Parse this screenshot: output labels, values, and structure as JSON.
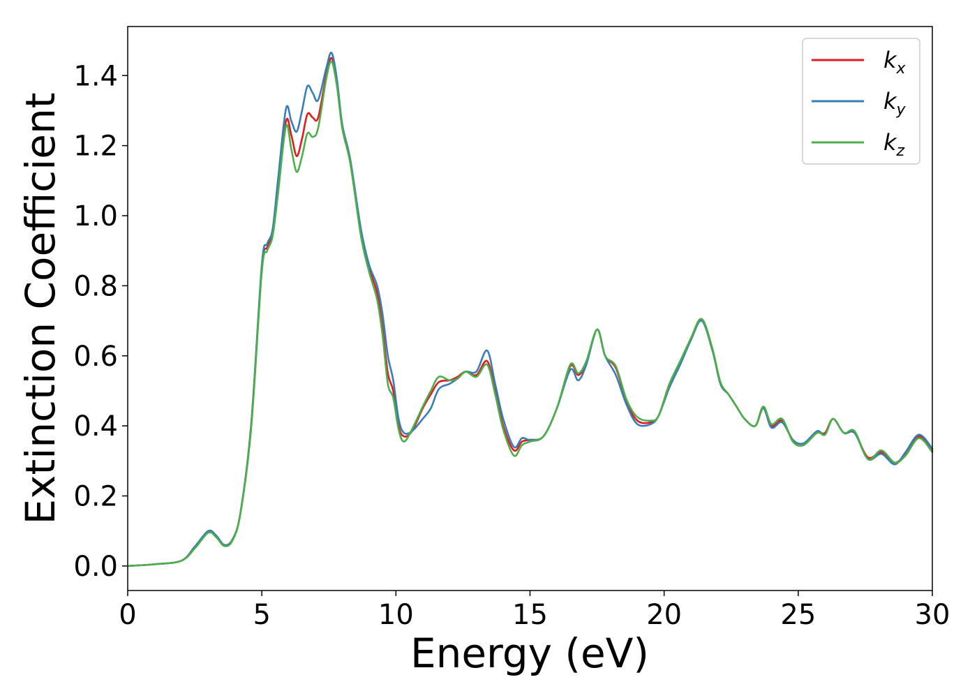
{
  "chart_data": {
    "type": "line",
    "xlabel": "Energy (eV)",
    "ylabel": "Extinction Coefficient",
    "xlim": [
      0,
      30
    ],
    "ylim": [
      -0.07,
      1.54
    ],
    "xticks": [
      0,
      5,
      10,
      15,
      20,
      25,
      30
    ],
    "yticks": [
      0.0,
      0.2,
      0.4,
      0.6,
      0.8,
      1.0,
      1.2,
      1.4
    ],
    "ytick_labels": [
      "0.0",
      "0.2",
      "0.4",
      "0.6",
      "0.8",
      "1.0",
      "1.2",
      "1.4"
    ],
    "grid": false,
    "legend_position": "top-right",
    "series": [
      {
        "name": "k_x",
        "label_base": "k",
        "label_sub": "x",
        "color": "#e41a1c",
        "points": [
          [
            0,
            0
          ],
          [
            1,
            0.005
          ],
          [
            2,
            0.015
          ],
          [
            2.5,
            0.055
          ],
          [
            3,
            0.098
          ],
          [
            3.3,
            0.085
          ],
          [
            3.6,
            0.06
          ],
          [
            3.9,
            0.075
          ],
          [
            4.2,
            0.15
          ],
          [
            4.6,
            0.4
          ],
          [
            5,
            0.85
          ],
          [
            5.2,
            0.91
          ],
          [
            5.4,
            0.95
          ],
          [
            5.6,
            1.08
          ],
          [
            5.9,
            1.27
          ],
          [
            6.1,
            1.23
          ],
          [
            6.3,
            1.17
          ],
          [
            6.5,
            1.22
          ],
          [
            6.7,
            1.29
          ],
          [
            6.9,
            1.28
          ],
          [
            7.1,
            1.28
          ],
          [
            7.4,
            1.4
          ],
          [
            7.6,
            1.45
          ],
          [
            7.8,
            1.38
          ],
          [
            8,
            1.25
          ],
          [
            8.3,
            1.15
          ],
          [
            8.7,
            0.95
          ],
          [
            9,
            0.85
          ],
          [
            9.3,
            0.78
          ],
          [
            9.5,
            0.68
          ],
          [
            9.7,
            0.55
          ],
          [
            9.9,
            0.5
          ],
          [
            10.1,
            0.4
          ],
          [
            10.3,
            0.37
          ],
          [
            10.6,
            0.385
          ],
          [
            11,
            0.45
          ],
          [
            11.3,
            0.49
          ],
          [
            11.6,
            0.525
          ],
          [
            12,
            0.53
          ],
          [
            12.3,
            0.54
          ],
          [
            12.6,
            0.555
          ],
          [
            13,
            0.545
          ],
          [
            13.4,
            0.585
          ],
          [
            13.7,
            0.5
          ],
          [
            14,
            0.4
          ],
          [
            14.4,
            0.33
          ],
          [
            14.7,
            0.355
          ],
          [
            15,
            0.36
          ],
          [
            15.5,
            0.37
          ],
          [
            16,
            0.45
          ],
          [
            16.5,
            0.57
          ],
          [
            16.8,
            0.545
          ],
          [
            17.1,
            0.58
          ],
          [
            17.5,
            0.675
          ],
          [
            17.8,
            0.6
          ],
          [
            18.2,
            0.565
          ],
          [
            18.6,
            0.47
          ],
          [
            19,
            0.415
          ],
          [
            19.5,
            0.41
          ],
          [
            19.8,
            0.43
          ],
          [
            20.2,
            0.52
          ],
          [
            20.6,
            0.58
          ],
          [
            21,
            0.65
          ],
          [
            21.4,
            0.705
          ],
          [
            21.8,
            0.62
          ],
          [
            22.1,
            0.52
          ],
          [
            22.4,
            0.49
          ],
          [
            22.7,
            0.455
          ],
          [
            23,
            0.42
          ],
          [
            23.4,
            0.4
          ],
          [
            23.7,
            0.455
          ],
          [
            24,
            0.4
          ],
          [
            24.4,
            0.415
          ],
          [
            24.8,
            0.36
          ],
          [
            25.2,
            0.35
          ],
          [
            25.7,
            0.38
          ],
          [
            26,
            0.38
          ],
          [
            26.3,
            0.42
          ],
          [
            26.7,
            0.38
          ],
          [
            27.1,
            0.38
          ],
          [
            27.6,
            0.31
          ],
          [
            28.1,
            0.325
          ],
          [
            28.6,
            0.295
          ],
          [
            29,
            0.32
          ],
          [
            29.5,
            0.37
          ],
          [
            30,
            0.33
          ]
        ]
      },
      {
        "name": "k_y",
        "label_base": "k",
        "label_sub": "y",
        "color": "#377eb8",
        "points": [
          [
            0,
            0
          ],
          [
            1,
            0.005
          ],
          [
            2,
            0.015
          ],
          [
            2.5,
            0.055
          ],
          [
            3,
            0.1
          ],
          [
            3.3,
            0.087
          ],
          [
            3.6,
            0.06
          ],
          [
            3.9,
            0.075
          ],
          [
            4.2,
            0.15
          ],
          [
            4.6,
            0.4
          ],
          [
            5,
            0.86
          ],
          [
            5.2,
            0.92
          ],
          [
            5.4,
            0.96
          ],
          [
            5.6,
            1.1
          ],
          [
            5.9,
            1.305
          ],
          [
            6.1,
            1.27
          ],
          [
            6.3,
            1.24
          ],
          [
            6.5,
            1.3
          ],
          [
            6.7,
            1.37
          ],
          [
            6.9,
            1.35
          ],
          [
            7.1,
            1.33
          ],
          [
            7.4,
            1.42
          ],
          [
            7.6,
            1.465
          ],
          [
            7.8,
            1.39
          ],
          [
            8,
            1.26
          ],
          [
            8.3,
            1.16
          ],
          [
            8.7,
            0.96
          ],
          [
            9,
            0.86
          ],
          [
            9.3,
            0.8
          ],
          [
            9.5,
            0.72
          ],
          [
            9.7,
            0.6
          ],
          [
            9.9,
            0.53
          ],
          [
            10.1,
            0.42
          ],
          [
            10.3,
            0.38
          ],
          [
            10.6,
            0.385
          ],
          [
            11,
            0.42
          ],
          [
            11.3,
            0.45
          ],
          [
            11.6,
            0.505
          ],
          [
            12,
            0.52
          ],
          [
            12.3,
            0.535
          ],
          [
            12.6,
            0.555
          ],
          [
            13,
            0.555
          ],
          [
            13.4,
            0.615
          ],
          [
            13.7,
            0.52
          ],
          [
            14,
            0.42
          ],
          [
            14.4,
            0.34
          ],
          [
            14.7,
            0.365
          ],
          [
            15,
            0.36
          ],
          [
            15.5,
            0.37
          ],
          [
            16,
            0.45
          ],
          [
            16.5,
            0.56
          ],
          [
            16.8,
            0.53
          ],
          [
            17.1,
            0.575
          ],
          [
            17.5,
            0.675
          ],
          [
            17.8,
            0.6
          ],
          [
            18.2,
            0.545
          ],
          [
            18.6,
            0.46
          ],
          [
            19,
            0.405
          ],
          [
            19.5,
            0.405
          ],
          [
            19.8,
            0.43
          ],
          [
            20.2,
            0.51
          ],
          [
            20.6,
            0.575
          ],
          [
            21,
            0.645
          ],
          [
            21.4,
            0.7
          ],
          [
            21.8,
            0.615
          ],
          [
            22.1,
            0.52
          ],
          [
            22.4,
            0.49
          ],
          [
            22.7,
            0.455
          ],
          [
            23,
            0.42
          ],
          [
            23.4,
            0.4
          ],
          [
            23.7,
            0.45
          ],
          [
            24,
            0.395
          ],
          [
            24.4,
            0.41
          ],
          [
            24.8,
            0.36
          ],
          [
            25.2,
            0.35
          ],
          [
            25.7,
            0.385
          ],
          [
            26,
            0.375
          ],
          [
            26.3,
            0.42
          ],
          [
            26.7,
            0.38
          ],
          [
            27.1,
            0.38
          ],
          [
            27.6,
            0.305
          ],
          [
            28.1,
            0.32
          ],
          [
            28.6,
            0.29
          ],
          [
            29,
            0.325
          ],
          [
            29.5,
            0.375
          ],
          [
            30,
            0.335
          ]
        ]
      },
      {
        "name": "k_z",
        "label_base": "k",
        "label_sub": "z",
        "color": "#4daf4a",
        "points": [
          [
            0,
            0
          ],
          [
            1,
            0.005
          ],
          [
            2,
            0.015
          ],
          [
            2.5,
            0.05
          ],
          [
            3,
            0.095
          ],
          [
            3.3,
            0.082
          ],
          [
            3.6,
            0.057
          ],
          [
            3.9,
            0.072
          ],
          [
            4.2,
            0.148
          ],
          [
            4.6,
            0.39
          ],
          [
            5,
            0.84
          ],
          [
            5.2,
            0.9
          ],
          [
            5.4,
            0.94
          ],
          [
            5.6,
            1.06
          ],
          [
            5.9,
            1.255
          ],
          [
            6.1,
            1.19
          ],
          [
            6.3,
            1.125
          ],
          [
            6.5,
            1.17
          ],
          [
            6.7,
            1.235
          ],
          [
            6.9,
            1.225
          ],
          [
            7.1,
            1.25
          ],
          [
            7.4,
            1.39
          ],
          [
            7.6,
            1.44
          ],
          [
            7.8,
            1.37
          ],
          [
            8,
            1.25
          ],
          [
            8.3,
            1.15
          ],
          [
            8.7,
            0.94
          ],
          [
            9,
            0.84
          ],
          [
            9.3,
            0.76
          ],
          [
            9.5,
            0.66
          ],
          [
            9.7,
            0.52
          ],
          [
            9.9,
            0.48
          ],
          [
            10.1,
            0.39
          ],
          [
            10.3,
            0.355
          ],
          [
            10.6,
            0.39
          ],
          [
            11,
            0.455
          ],
          [
            11.3,
            0.5
          ],
          [
            11.6,
            0.54
          ],
          [
            12,
            0.53
          ],
          [
            12.3,
            0.535
          ],
          [
            12.6,
            0.555
          ],
          [
            13,
            0.54
          ],
          [
            13.4,
            0.575
          ],
          [
            13.7,
            0.49
          ],
          [
            14,
            0.39
          ],
          [
            14.4,
            0.315
          ],
          [
            14.7,
            0.345
          ],
          [
            15,
            0.355
          ],
          [
            15.5,
            0.37
          ],
          [
            16,
            0.45
          ],
          [
            16.5,
            0.575
          ],
          [
            16.8,
            0.55
          ],
          [
            17.1,
            0.585
          ],
          [
            17.5,
            0.675
          ],
          [
            17.8,
            0.6
          ],
          [
            18.2,
            0.57
          ],
          [
            18.6,
            0.475
          ],
          [
            19,
            0.425
          ],
          [
            19.5,
            0.415
          ],
          [
            19.8,
            0.43
          ],
          [
            20.2,
            0.52
          ],
          [
            20.6,
            0.585
          ],
          [
            21,
            0.65
          ],
          [
            21.4,
            0.705
          ],
          [
            21.8,
            0.62
          ],
          [
            22.1,
            0.525
          ],
          [
            22.4,
            0.49
          ],
          [
            22.7,
            0.455
          ],
          [
            23,
            0.42
          ],
          [
            23.4,
            0.4
          ],
          [
            23.7,
            0.455
          ],
          [
            24,
            0.405
          ],
          [
            24.4,
            0.42
          ],
          [
            24.8,
            0.355
          ],
          [
            25.2,
            0.345
          ],
          [
            25.7,
            0.38
          ],
          [
            26,
            0.375
          ],
          [
            26.3,
            0.42
          ],
          [
            26.7,
            0.38
          ],
          [
            27.1,
            0.385
          ],
          [
            27.6,
            0.305
          ],
          [
            28.1,
            0.33
          ],
          [
            28.6,
            0.295
          ],
          [
            29,
            0.315
          ],
          [
            29.5,
            0.365
          ],
          [
            30,
            0.325
          ]
        ]
      }
    ]
  }
}
